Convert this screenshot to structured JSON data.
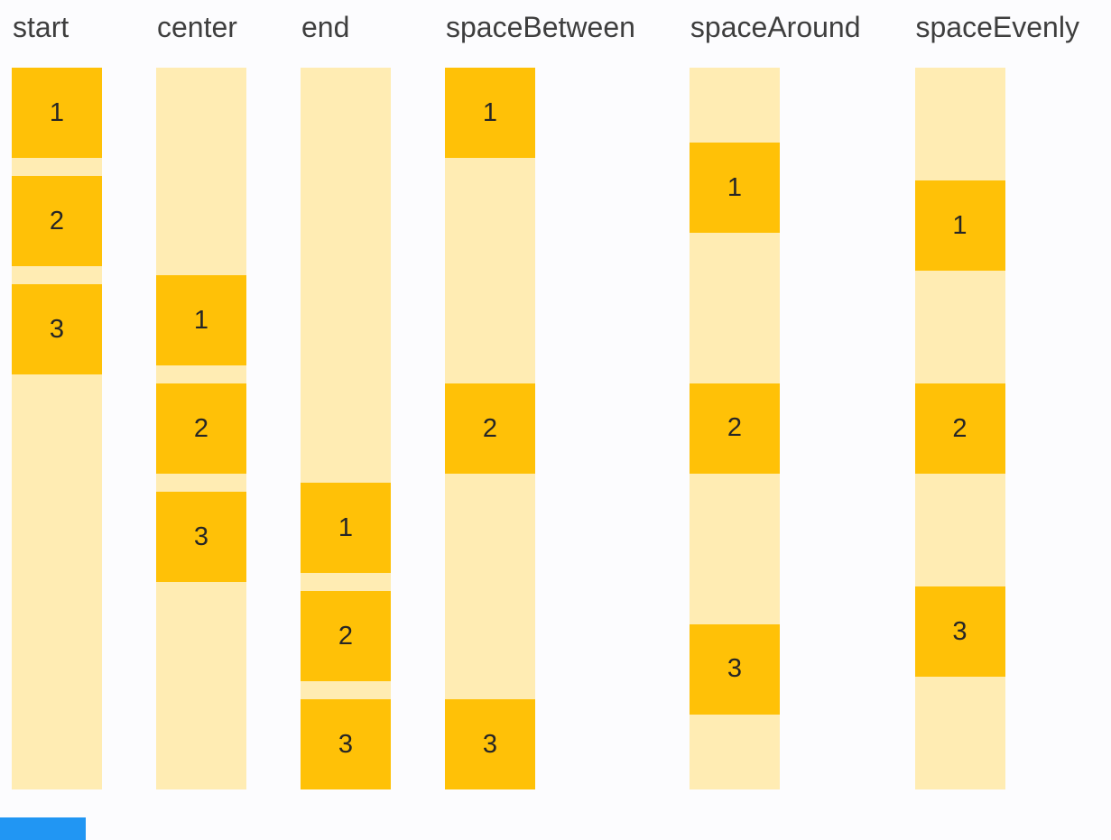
{
  "colors": {
    "background": "#fcfcfe",
    "box_fill": "#ffc107",
    "track_fill": "#ffecb3",
    "label_text": "#3e3e3e",
    "number_text": "#262626",
    "accent_bar": "#2196f3"
  },
  "demo": {
    "groups": [
      {
        "label": "start",
        "justify": "start",
        "items": [
          "1",
          "2",
          "3"
        ]
      },
      {
        "label": "center",
        "justify": "center",
        "items": [
          "1",
          "2",
          "3"
        ]
      },
      {
        "label": "end",
        "justify": "end",
        "items": [
          "1",
          "2",
          "3"
        ]
      },
      {
        "label": "spaceBetween",
        "justify": "spaceBetween",
        "items": [
          "1",
          "2",
          "3"
        ]
      },
      {
        "label": "spaceAround",
        "justify": "spaceAround",
        "items": [
          "1",
          "2",
          "3"
        ]
      },
      {
        "label": "spaceEvenly",
        "justify": "spaceEvenly",
        "items": [
          "1",
          "2",
          "3"
        ]
      }
    ]
  }
}
